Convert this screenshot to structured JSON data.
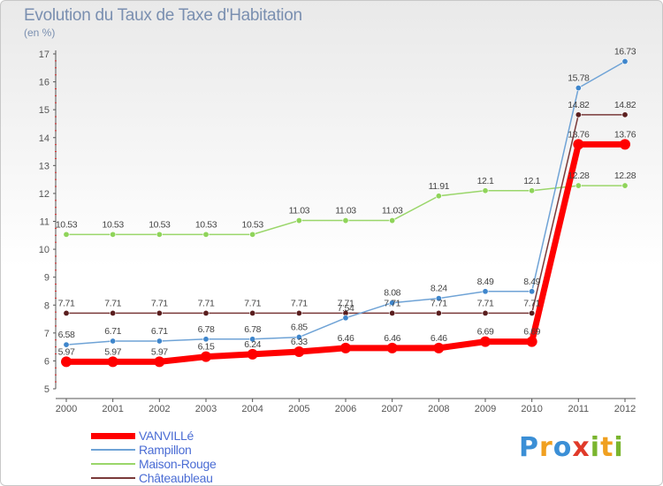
{
  "header": {
    "title": "Evolution du Taux de Taxe d'Habitation",
    "subtitle": "(en %)"
  },
  "logo": {
    "text": "Proxiti",
    "letters": [
      "P",
      "r",
      "o",
      "x",
      "i",
      "t",
      "i"
    ],
    "colors": [
      "#3b8fd6",
      "#f0a020",
      "#3b8fd6",
      "#e03a2a",
      "#7ab52e",
      "#f0a020",
      "#7ab52e"
    ]
  },
  "chart_data": {
    "type": "line",
    "title": "Evolution du Taux de Taxe d'Habitation",
    "ylabel": "(en %)",
    "xlabel": "",
    "ylim": [
      5,
      17
    ],
    "yticks": [
      5,
      6,
      7,
      8,
      9,
      10,
      11,
      12,
      13,
      14,
      15,
      16,
      17
    ],
    "categories": [
      "2000",
      "2001",
      "2002",
      "2003",
      "2004",
      "2005",
      "2006",
      "2007",
      "2008",
      "2009",
      "2010",
      "2011",
      "2012"
    ],
    "grid": false,
    "legend_position": "bottom-left",
    "series": [
      {
        "name": "VANVILLé",
        "color": "#ff0000",
        "values": [
          5.97,
          5.97,
          5.97,
          6.15,
          6.24,
          6.33,
          6.46,
          6.46,
          6.46,
          6.69,
          6.69,
          13.76,
          13.76
        ],
        "labels": [
          "5.97",
          "5.97",
          "5.97",
          "6.15",
          "6.24",
          "6.33",
          "6.46",
          "6.46",
          "6.46",
          "6.69",
          "6.69",
          "13.76",
          "13.76"
        ]
      },
      {
        "name": "Rampillon",
        "color": "#6fa3d6",
        "values": [
          6.58,
          6.71,
          6.71,
          6.78,
          6.78,
          6.85,
          7.54,
          8.08,
          8.24,
          8.49,
          8.49,
          15.78,
          16.73
        ],
        "labels": [
          "6.58",
          "6.71",
          "6.71",
          "6.78",
          "6.78",
          "6.85",
          "7.54",
          "8.08",
          "8.24",
          "8.49",
          "8.49",
          "15.78",
          "16.73"
        ]
      },
      {
        "name": "Maison-Rouge",
        "color": "#9ad66a",
        "values": [
          10.53,
          10.53,
          10.53,
          10.53,
          10.53,
          11.03,
          11.03,
          11.03,
          11.91,
          12.1,
          12.1,
          12.28,
          12.28
        ],
        "labels": [
          "10.53",
          "10.53",
          "10.53",
          "10.53",
          "10.53",
          "11.03",
          "11.03",
          "11.03",
          "11.91",
          "12.1",
          "12.1",
          "12.28",
          "12.28"
        ]
      },
      {
        "name": "Châteaubleau",
        "color": "#7a3a3a",
        "values": [
          7.71,
          7.71,
          7.71,
          7.71,
          7.71,
          7.71,
          7.71,
          7.71,
          7.71,
          7.71,
          7.71,
          14.82,
          14.82
        ],
        "labels": [
          "7.71",
          "7.71",
          "7.71",
          "7.71",
          "7.71",
          "7.71",
          "7.71",
          "7.71",
          "7.71",
          "7.71",
          "7.71",
          "14.82",
          "14.82"
        ]
      }
    ]
  }
}
